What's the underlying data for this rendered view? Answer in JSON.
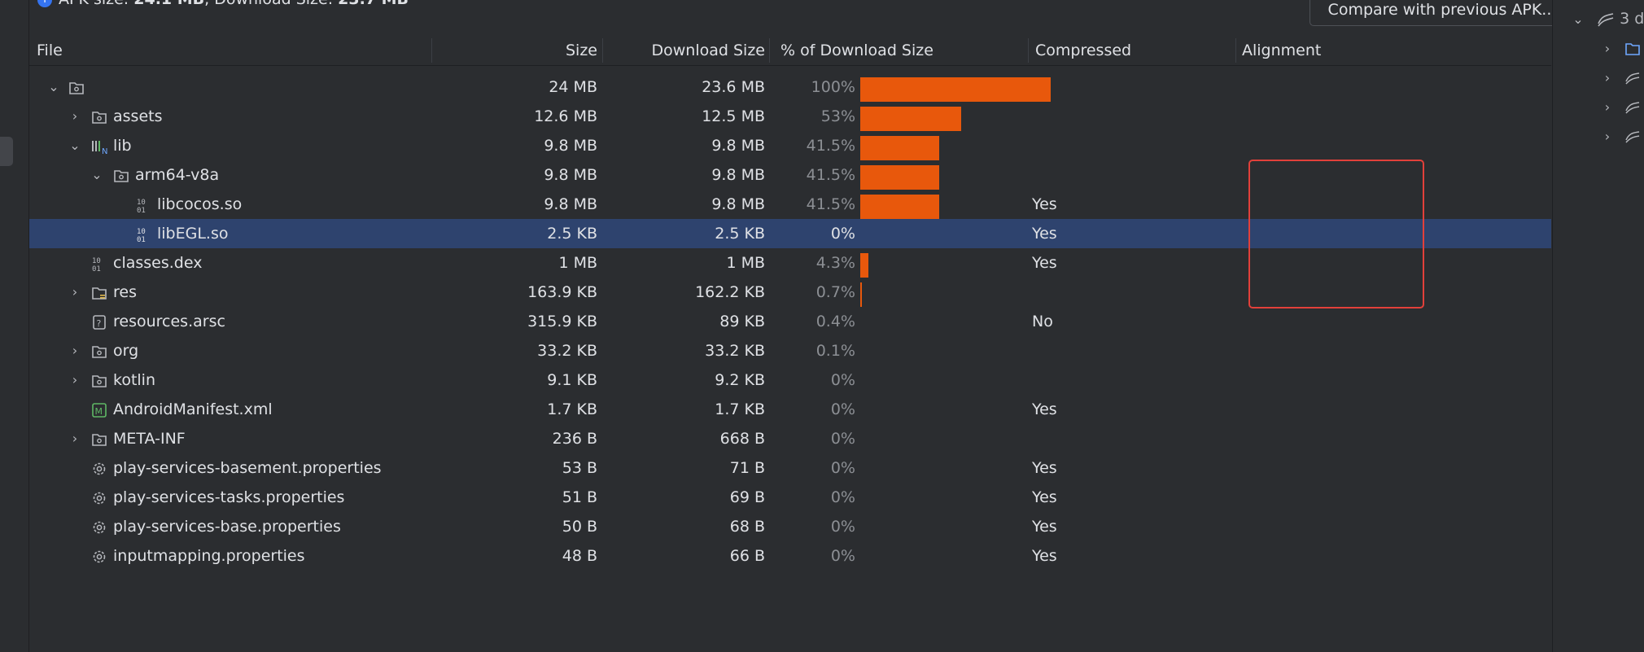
{
  "summary": {
    "apk_label": "APK size: ",
    "apk_value": "24.1 MB",
    "sep": ", Download Size: ",
    "dl_value": "23.7 MB"
  },
  "compare_button": "Compare with previous APK...",
  "columns": {
    "file": "File",
    "size": "Size",
    "download": "Download Size",
    "percent": "% of Download Size",
    "compressed": "Compressed",
    "alignment": "Alignment"
  },
  "rows": [
    {
      "name": "",
      "size": "24 MB",
      "download": "23.6 MB",
      "percent": "100%",
      "fraction": 1.0,
      "compressed": ""
    },
    {
      "name": "assets",
      "size": "12.6 MB",
      "download": "12.5 MB",
      "percent": "53%",
      "fraction": 0.53,
      "compressed": ""
    },
    {
      "name": "lib",
      "size": "9.8 MB",
      "download": "9.8 MB",
      "percent": "41.5%",
      "fraction": 0.415,
      "compressed": ""
    },
    {
      "name": "arm64-v8a",
      "size": "9.8 MB",
      "download": "9.8 MB",
      "percent": "41.5%",
      "fraction": 0.415,
      "compressed": ""
    },
    {
      "name": "libcocos.so",
      "size": "9.8 MB",
      "download": "9.8 MB",
      "percent": "41.5%",
      "fraction": 0.415,
      "compressed": "Yes"
    },
    {
      "name": "libEGL.so",
      "size": "2.5 KB",
      "download": "2.5 KB",
      "percent": "0%",
      "fraction": 0,
      "compressed": "Yes"
    },
    {
      "name": "classes.dex",
      "size": "1 MB",
      "download": "1 MB",
      "percent": "4.3%",
      "fraction": 0.043,
      "compressed": "Yes"
    },
    {
      "name": "res",
      "size": "163.9 KB",
      "download": "162.2 KB",
      "percent": "0.7%",
      "fraction": 0.007,
      "compressed": ""
    },
    {
      "name": "resources.arsc",
      "size": "315.9 KB",
      "download": "89 KB",
      "percent": "0.4%",
      "fraction": 0,
      "compressed": "No"
    },
    {
      "name": "org",
      "size": "33.2 KB",
      "download": "33.2 KB",
      "percent": "0.1%",
      "fraction": 0,
      "compressed": ""
    },
    {
      "name": "kotlin",
      "size": "9.1 KB",
      "download": "9.2 KB",
      "percent": "0%",
      "fraction": 0,
      "compressed": ""
    },
    {
      "name": "AndroidManifest.xml",
      "size": "1.7 KB",
      "download": "1.7 KB",
      "percent": "0%",
      "fraction": 0,
      "compressed": "Yes"
    },
    {
      "name": "META-INF",
      "size": "236 B",
      "download": "668 B",
      "percent": "0%",
      "fraction": 0,
      "compressed": ""
    },
    {
      "name": "play-services-basement.properties",
      "size": "53 B",
      "download": "71 B",
      "percent": "0%",
      "fraction": 0,
      "compressed": "Yes"
    },
    {
      "name": "play-services-tasks.properties",
      "size": "51 B",
      "download": "69 B",
      "percent": "0%",
      "fraction": 0,
      "compressed": "Yes"
    },
    {
      "name": "play-services-base.properties",
      "size": "50 B",
      "download": "68 B",
      "percent": "0%",
      "fraction": 0,
      "compressed": "Yes"
    },
    {
      "name": "inputmapping.properties",
      "size": "48 B",
      "download": "66 B",
      "percent": "0%",
      "fraction": 0,
      "compressed": "Yes"
    }
  ],
  "right_panel": {
    "root_label": "3 d"
  },
  "colors": {
    "bar": "#e8580c",
    "selected_row": "#2e436e",
    "highlight_box": "#e2403a"
  }
}
